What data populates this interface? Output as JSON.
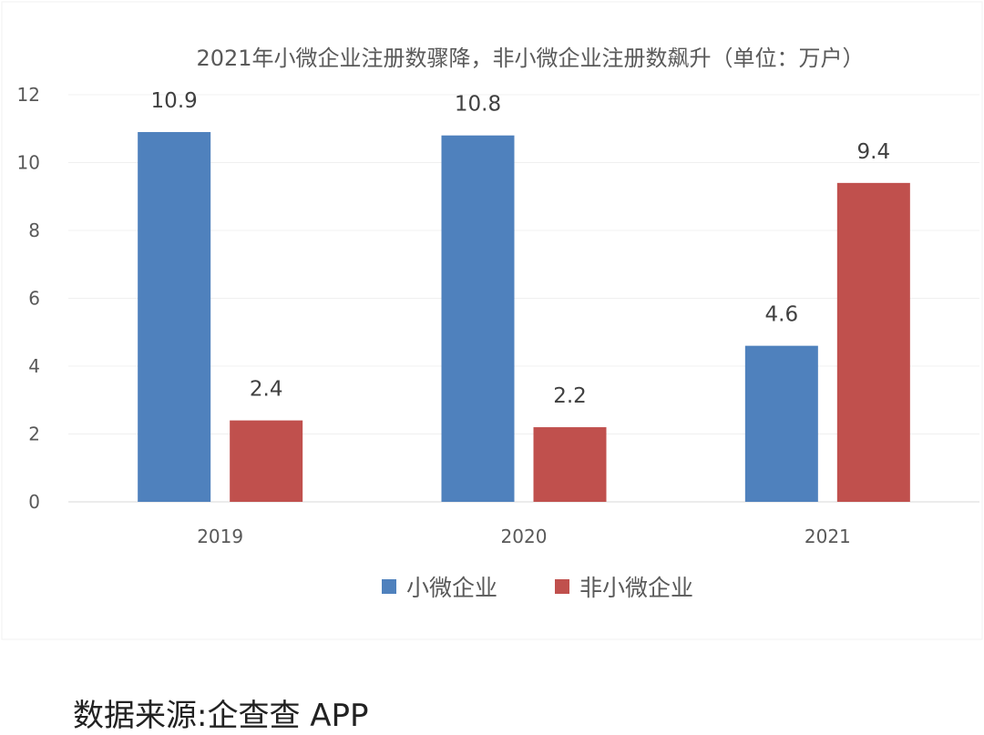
{
  "chart_data": {
    "type": "bar",
    "title": "2021年小微企业注册数骤降，非小微企业注册数飙升（单位：万户）",
    "categories": [
      "2019",
      "2020",
      "2021"
    ],
    "series": [
      {
        "name": "小微企业",
        "values": [
          10.9,
          10.8,
          4.6
        ],
        "color": "#4f81bd"
      },
      {
        "name": "非小微企业",
        "values": [
          2.4,
          2.2,
          9.4
        ],
        "color": "#c0504d"
      }
    ],
    "data_labels": [
      [
        "10.9",
        "10.8",
        "4.6"
      ],
      [
        "2.4",
        "2.2",
        "9.4"
      ]
    ],
    "ylim": [
      0,
      12
    ],
    "yticks": [
      "0",
      "2",
      "4",
      "6",
      "8",
      "10",
      "12"
    ],
    "xlabel": "",
    "ylabel": "",
    "grid": true,
    "legend_position": "bottom"
  },
  "source": "数据来源:企查查 APP"
}
